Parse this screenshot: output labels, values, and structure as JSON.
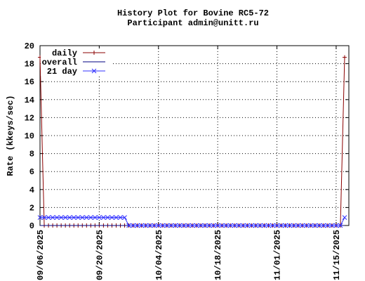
{
  "chart_data": {
    "type": "line",
    "title": "History Plot for Bovine RC5-72",
    "subtitle": "Participant admin@unitt.ru",
    "y_label": "Rate (kkeys/sec)",
    "x": [
      "2025-09-06",
      "2025-09-07",
      "2025-09-08",
      "2025-09-09",
      "2025-09-10",
      "2025-09-11",
      "2025-09-12",
      "2025-09-13",
      "2025-09-14",
      "2025-09-15",
      "2025-09-16",
      "2025-09-17",
      "2025-09-18",
      "2025-09-19",
      "2025-09-20",
      "2025-09-21",
      "2025-09-22",
      "2025-09-23",
      "2025-09-24",
      "2025-09-25",
      "2025-09-26",
      "2025-09-27",
      "2025-09-28",
      "2025-09-29",
      "2025-09-30",
      "2025-10-01",
      "2025-10-02",
      "2025-10-03",
      "2025-10-04",
      "2025-10-05",
      "2025-10-06",
      "2025-10-07",
      "2025-10-08",
      "2025-10-09",
      "2025-10-10",
      "2025-10-11",
      "2025-10-12",
      "2025-10-13",
      "2025-10-14",
      "2025-10-15",
      "2025-10-16",
      "2025-10-17",
      "2025-10-18",
      "2025-10-19",
      "2025-10-20",
      "2025-10-21",
      "2025-10-22",
      "2025-10-23",
      "2025-10-24",
      "2025-10-25",
      "2025-10-26",
      "2025-10-27",
      "2025-10-28",
      "2025-10-29",
      "2025-10-30",
      "2025-10-31",
      "2025-11-01",
      "2025-11-02",
      "2025-11-03",
      "2025-11-04",
      "2025-11-05",
      "2025-11-06",
      "2025-11-07",
      "2025-11-08",
      "2025-11-09",
      "2025-11-10",
      "2025-11-11",
      "2025-11-12",
      "2025-11-13",
      "2025-11-14",
      "2025-11-15",
      "2025-11-16",
      "2025-11-17"
    ],
    "series": [
      {
        "name": "daily",
        "color": "#8b0000",
        "marker": "plus",
        "values": [
          18.7,
          0,
          0,
          0,
          0,
          0,
          0,
          0,
          0,
          0,
          0,
          0,
          0,
          0,
          0,
          0,
          0,
          0,
          0,
          0,
          0,
          0,
          0,
          0,
          0,
          0,
          0,
          0,
          0,
          0,
          0,
          0,
          0,
          0,
          0,
          0,
          0,
          0,
          0,
          0,
          0,
          0,
          0,
          0,
          0,
          0,
          0,
          0,
          0,
          0,
          0,
          0,
          0,
          0,
          0,
          0,
          0,
          0,
          0,
          0,
          0,
          0,
          0,
          0,
          0,
          0,
          0,
          0,
          0,
          0,
          0,
          0,
          18.7
        ]
      },
      {
        "name": "overall",
        "color": "#000080",
        "marker": "none",
        "values": [
          0,
          0,
          0,
          0,
          0,
          0,
          0,
          0,
          0,
          0,
          0,
          0,
          0,
          0,
          0,
          0,
          0,
          0,
          0,
          0,
          0,
          0,
          0,
          0,
          0,
          0,
          0,
          0,
          0,
          0,
          0,
          0,
          0,
          0,
          0,
          0,
          0,
          0,
          0,
          0,
          0,
          0,
          0,
          0,
          0,
          0,
          0,
          0,
          0,
          0,
          0,
          0,
          0,
          0,
          0,
          0,
          0,
          0,
          0,
          0,
          0,
          0,
          0,
          0,
          0,
          0,
          0,
          0,
          0,
          0,
          0,
          0,
          0
        ]
      },
      {
        "name": "21 day",
        "color": "#3030ff",
        "marker": "cross",
        "values": [
          0.89,
          0.89,
          0.89,
          0.89,
          0.89,
          0.89,
          0.89,
          0.89,
          0.89,
          0.89,
          0.89,
          0.89,
          0.89,
          0.89,
          0.89,
          0.89,
          0.89,
          0.89,
          0.89,
          0.89,
          0.89,
          0,
          0,
          0,
          0,
          0,
          0,
          0,
          0,
          0,
          0,
          0,
          0,
          0,
          0,
          0,
          0,
          0,
          0,
          0,
          0,
          0,
          0,
          0,
          0,
          0,
          0,
          0,
          0,
          0,
          0,
          0,
          0,
          0,
          0,
          0,
          0,
          0,
          0,
          0,
          0,
          0,
          0,
          0,
          0,
          0,
          0,
          0,
          0,
          0,
          0,
          0,
          0.89
        ]
      }
    ],
    "xlim": [
      "2025-09-06",
      "2025-11-18"
    ],
    "xticks": [
      {
        "value": "2025-09-06",
        "label": "09/06/2025"
      },
      {
        "value": "2025-09-20",
        "label": "09/20/2025"
      },
      {
        "value": "2025-10-04",
        "label": "10/04/2025"
      },
      {
        "value": "2025-10-18",
        "label": "10/18/2025"
      },
      {
        "value": "2025-11-01",
        "label": "11/01/2025"
      },
      {
        "value": "2025-11-15",
        "label": "11/15/2025"
      }
    ],
    "ylim": [
      0,
      20
    ],
    "yticks": [
      0,
      2,
      4,
      6,
      8,
      10,
      12,
      14,
      16,
      18,
      20
    ],
    "grid": true,
    "legend": "top-left"
  }
}
